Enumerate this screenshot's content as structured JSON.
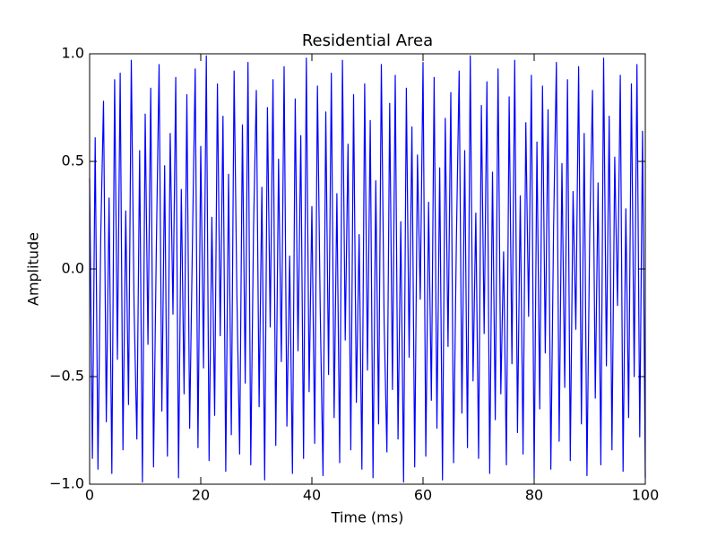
{
  "chart_data": {
    "type": "line",
    "title": "Residential Area",
    "xlabel": "Time (ms)",
    "ylabel": "Amplitude",
    "x": [
      0,
      0.5,
      1,
      1.5,
      2,
      2.5,
      3,
      3.5,
      4,
      4.5,
      5,
      5.5,
      6,
      6.5,
      7,
      7.5,
      8,
      8.5,
      9,
      9.5,
      10,
      10.5,
      11,
      11.5,
      12,
      12.5,
      13,
      13.5,
      14,
      14.5,
      15,
      15.5,
      16,
      16.5,
      17,
      17.5,
      18,
      18.5,
      19,
      19.5,
      20,
      20.5,
      21,
      21.5,
      22,
      22.5,
      23,
      23.5,
      24,
      24.5,
      25,
      25.5,
      26,
      26.5,
      27,
      27.5,
      28,
      28.5,
      29,
      29.5,
      30,
      30.5,
      31,
      31.5,
      32,
      32.5,
      33,
      33.5,
      34,
      34.5,
      35,
      35.5,
      36,
      36.5,
      37,
      37.5,
      38,
      38.5,
      39,
      39.5,
      40,
      40.5,
      41,
      41.5,
      42,
      42.5,
      43,
      43.5,
      44,
      44.5,
      45,
      45.5,
      46,
      46.5,
      47,
      47.5,
      48,
      48.5,
      49,
      49.5,
      50,
      50.5,
      51,
      51.5,
      52,
      52.5,
      53,
      53.5,
      54,
      54.5,
      55,
      55.5,
      56,
      56.5,
      57,
      57.5,
      58,
      58.5,
      59,
      59.5,
      60,
      60.5,
      61,
      61.5,
      62,
      62.5,
      63,
      63.5,
      64,
      64.5,
      65,
      65.5,
      66,
      66.5,
      67,
      67.5,
      68,
      68.5,
      69,
      69.5,
      70,
      70.5,
      71,
      71.5,
      72,
      72.5,
      73,
      73.5,
      74,
      74.5,
      75,
      75.5,
      76,
      76.5,
      77,
      77.5,
      78,
      78.5,
      79,
      79.5,
      80,
      80.5,
      81,
      81.5,
      82,
      82.5,
      83,
      83.5,
      84,
      84.5,
      85,
      85.5,
      86,
      86.5,
      87,
      87.5,
      88,
      88.5,
      89,
      89.5,
      90,
      90.5,
      91,
      91.5,
      92,
      92.5,
      93,
      93.5,
      94,
      94.5,
      95,
      95.5,
      96,
      96.5,
      97,
      97.5,
      98,
      98.5,
      99,
      99.5,
      100
    ],
    "series": [
      {
        "color": "#0000ff",
        "values": [
          0.42,
          -0.88,
          0.61,
          -0.93,
          0.15,
          0.78,
          -0.71,
          0.33,
          -0.95,
          0.88,
          -0.42,
          0.91,
          -0.84,
          0.27,
          -0.63,
          0.97,
          -0.18,
          -0.79,
          0.55,
          -0.99,
          0.72,
          -0.35,
          0.84,
          -0.92,
          0.09,
          0.95,
          -0.66,
          0.48,
          -0.87,
          0.63,
          -0.21,
          0.89,
          -0.97,
          0.37,
          -0.58,
          0.81,
          -0.74,
          0.12,
          0.93,
          -0.83,
          0.57,
          -0.46,
          0.99,
          -0.89,
          0.24,
          -0.68,
          0.86,
          -0.31,
          0.71,
          -0.94,
          0.44,
          -0.77,
          0.92,
          -0.12,
          -0.86,
          0.67,
          -0.53,
          0.96,
          -0.91,
          0.19,
          0.83,
          -0.64,
          0.38,
          -0.98,
          0.75,
          -0.27,
          0.88,
          -0.82,
          0.51,
          -0.43,
          0.94,
          -0.73,
          0.06,
          -0.95,
          0.79,
          -0.38,
          0.62,
          -0.88,
          0.98,
          -0.57,
          0.29,
          -0.81,
          0.85,
          -0.19,
          -0.96,
          0.73,
          -0.49,
          0.91,
          -0.69,
          0.35,
          -0.9,
          0.97,
          -0.33,
          0.58,
          -0.84,
          0.81,
          -0.62,
          0.16,
          -0.93,
          0.86,
          -0.47,
          0.69,
          -0.97,
          0.41,
          -0.72,
          0.95,
          -0.25,
          -0.85,
          0.77,
          -0.56,
          0.9,
          -0.79,
          0.22,
          -0.99,
          0.84,
          -0.41,
          0.66,
          -0.92,
          0.53,
          -0.14,
          0.96,
          -0.87,
          0.31,
          -0.61,
          0.89,
          -0.74,
          0.47,
          -0.98,
          0.7,
          -0.36,
          0.82,
          -0.9,
          0.13,
          0.92,
          -0.67,
          0.55,
          -0.83,
          0.99,
          -0.52,
          0.26,
          -0.88,
          0.76,
          -0.3,
          0.87,
          -0.95,
          0.45,
          -0.7,
          0.93,
          -0.58,
          0.08,
          -0.91,
          0.8,
          -0.44,
          0.97,
          -0.76,
          0.34,
          -0.86,
          0.68,
          -0.22,
          0.9,
          -0.97,
          0.59,
          -0.65,
          0.85,
          -0.39,
          0.74,
          -0.93,
          0.2,
          0.96,
          -0.8,
          0.49,
          -0.55,
          0.88,
          -0.89,
          0.36,
          -0.28,
          0.94,
          -0.72,
          0.63,
          -0.96,
          0.17,
          0.83,
          -0.6,
          0.4,
          -0.91,
          0.98,
          -0.45,
          0.71,
          -0.84,
          0.52,
          -0.17,
          0.9,
          -0.94,
          0.28,
          -0.69,
          0.86,
          -0.5,
          0.95,
          -0.78,
          0.64,
          -0.97
        ]
      }
    ],
    "xlim": [
      0,
      100
    ],
    "xticks": [
      0,
      20,
      40,
      60,
      80,
      100
    ],
    "ylim": [
      -1,
      1
    ],
    "yticks": [
      {
        "value": -1,
        "label": "−1.0"
      },
      {
        "value": -0.5,
        "label": "−0.5"
      },
      {
        "value": 0,
        "label": "0.0"
      },
      {
        "value": 0.5,
        "label": "0.5"
      },
      {
        "value": 1,
        "label": "1.0"
      }
    ],
    "grid": false
  }
}
